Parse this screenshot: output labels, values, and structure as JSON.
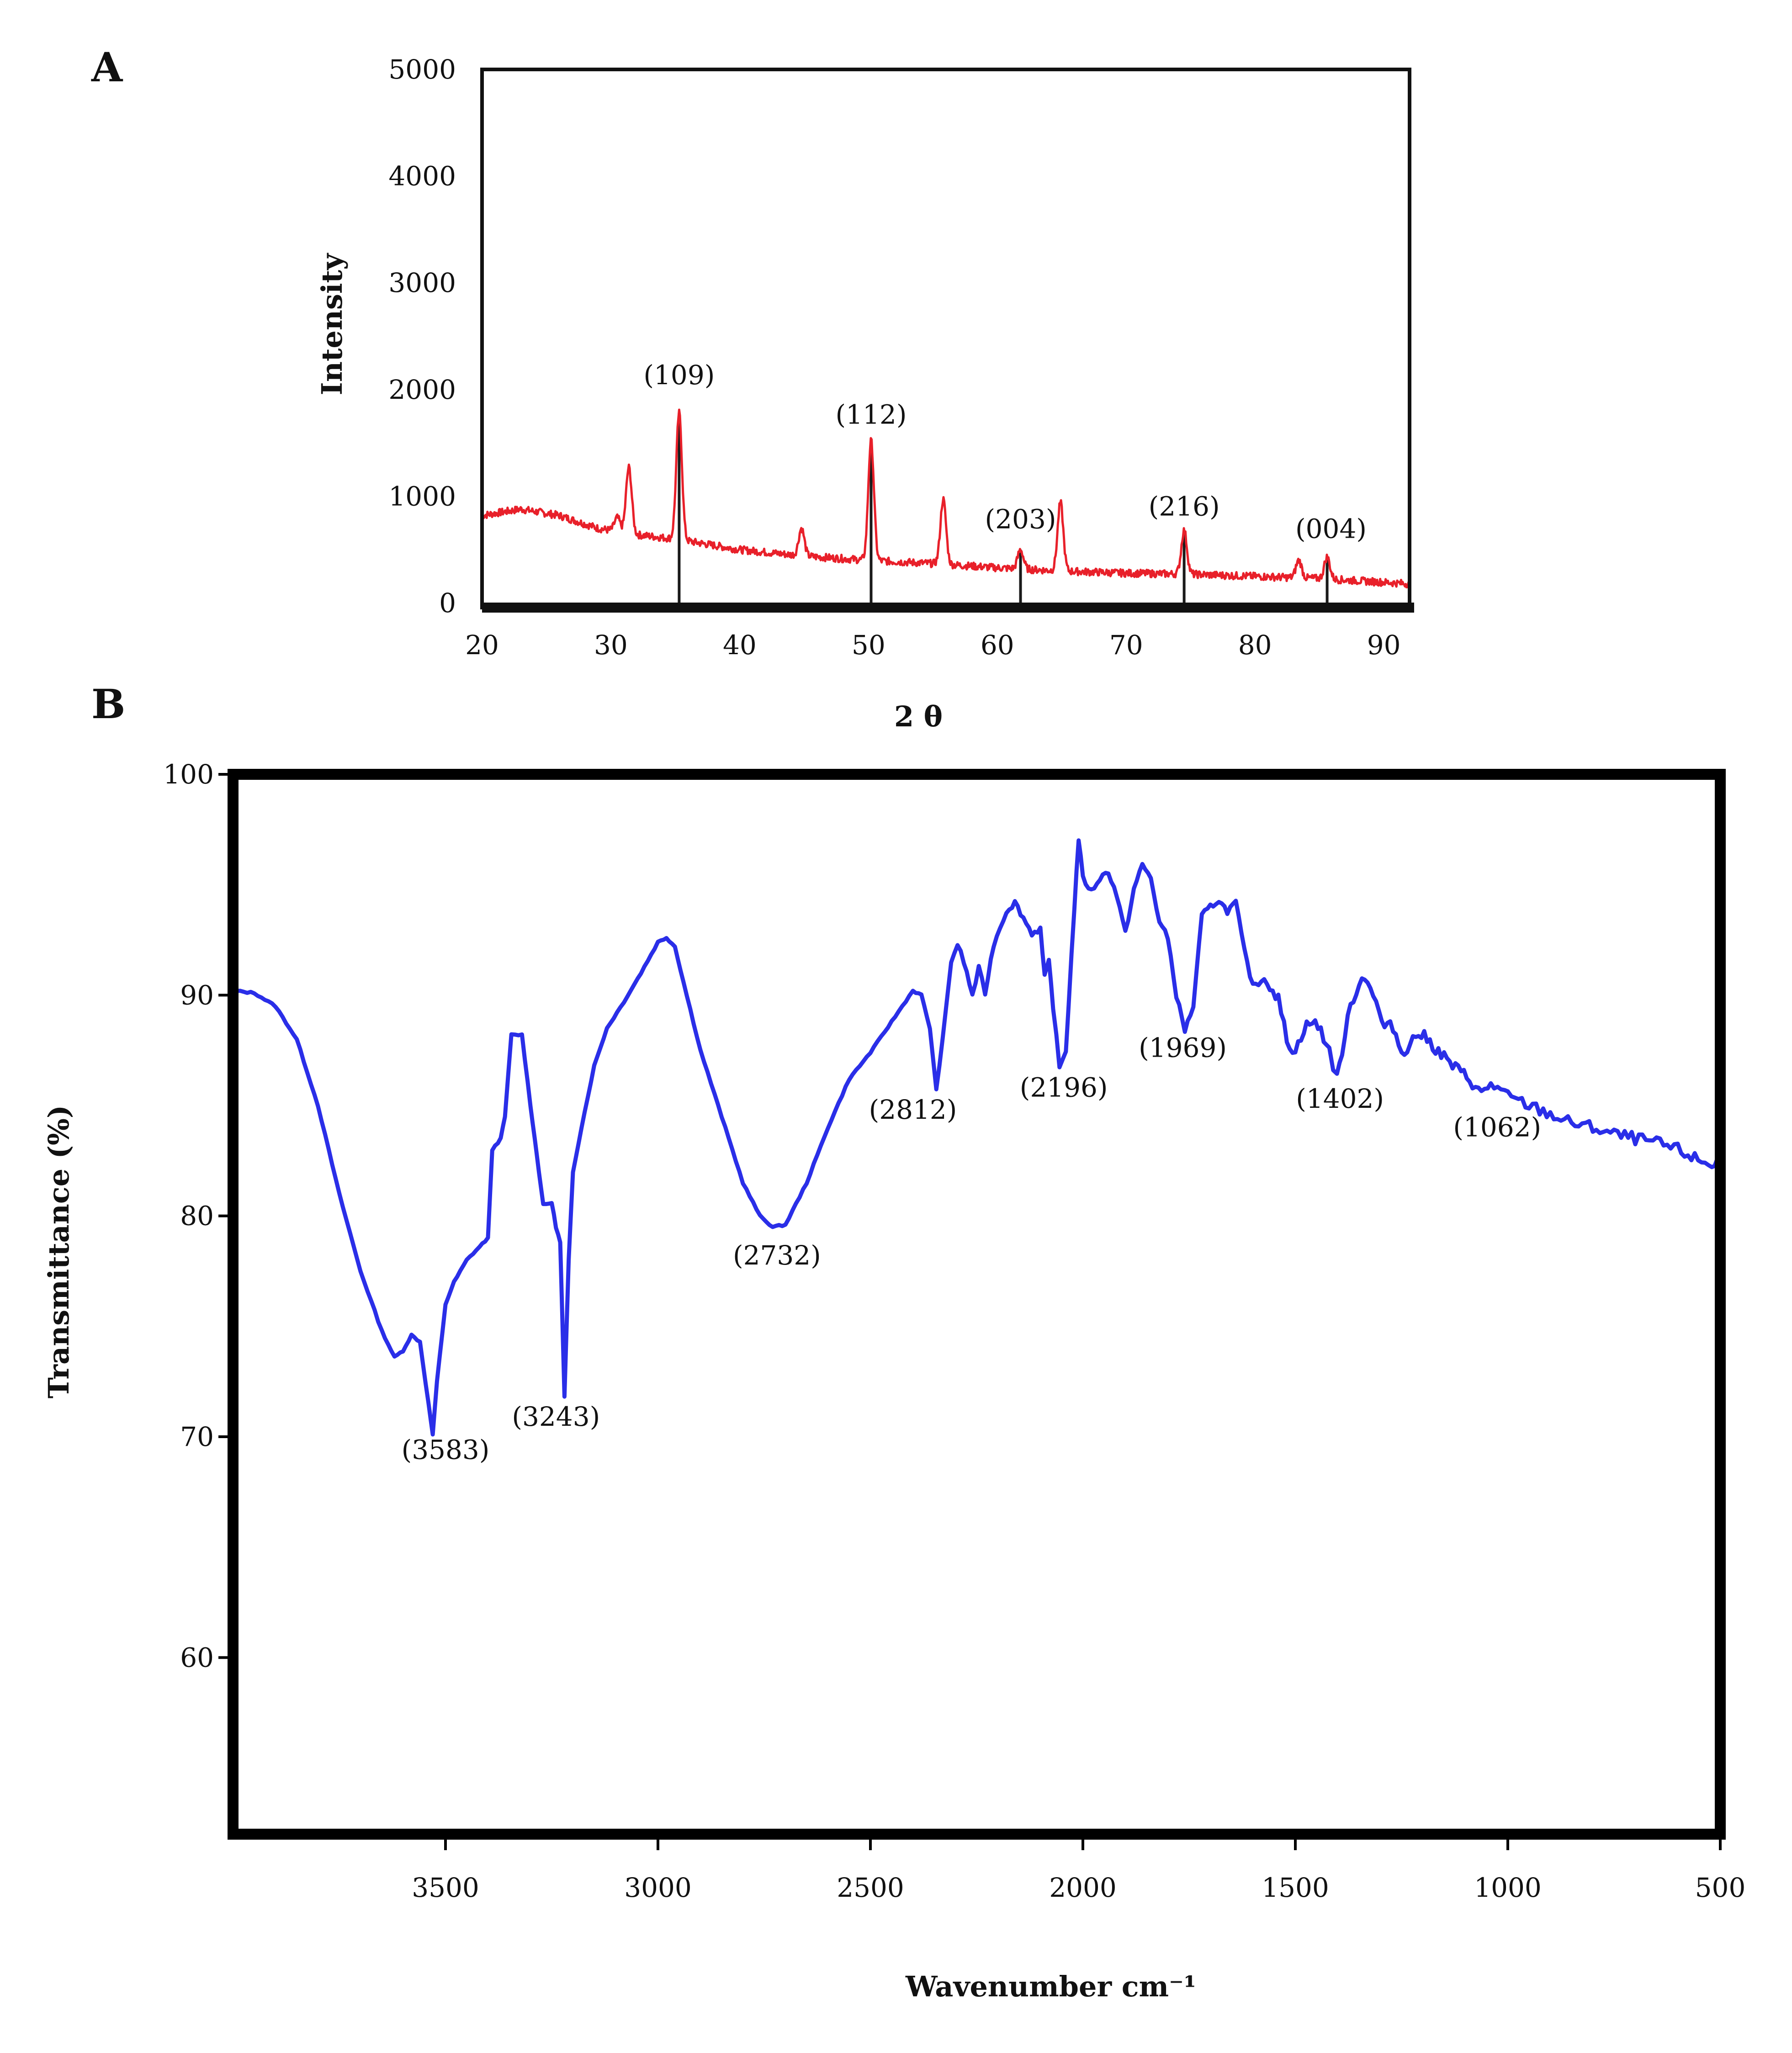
{
  "chart_data": [
    {
      "type": "line",
      "panel_label": "A",
      "xlabel": "2 θ",
      "ylabel": "Intensity",
      "xlim": [
        20,
        92
      ],
      "ylim": [
        0,
        5000
      ],
      "x_ticks": [
        {
          "label": "20",
          "value": 20
        },
        {
          "label": "30",
          "value": 30
        },
        {
          "label": "40",
          "value": 40
        },
        {
          "label": "50",
          "value": 50
        },
        {
          "label": "60",
          "value": 60
        },
        {
          "label": "70",
          "value": 70
        },
        {
          "label": "80",
          "value": 80
        },
        {
          "label": "90",
          "value": 90
        }
      ],
      "y_ticks": [
        {
          "label": "0",
          "value": 0
        },
        {
          "label": "1000",
          "value": 1000
        },
        {
          "label": "2000",
          "value": 2000
        },
        {
          "label": "3000",
          "value": 3000
        },
        {
          "label": "4000",
          "value": 4000
        },
        {
          "label": "5000",
          "value": 5000
        }
      ],
      "grid": false,
      "series": [
        {
          "color": "#e8202a",
          "background": [
            [
              20,
              820
            ],
            [
              23,
              880
            ],
            [
              26,
              820
            ],
            [
              29,
              700
            ],
            [
              32,
              640
            ],
            [
              35,
              600
            ],
            [
              40,
              500
            ],
            [
              45,
              440
            ],
            [
              50,
              400
            ],
            [
              55,
              370
            ],
            [
              60,
              330
            ],
            [
              65,
              300
            ],
            [
              70,
              280
            ],
            [
              75,
              270
            ],
            [
              80,
              250
            ],
            [
              85,
              230
            ],
            [
              92,
              180
            ]
          ],
          "peaks": [
            {
              "x": 30.5,
              "y": 800
            },
            {
              "x": 31.4,
              "y": 1270
            },
            {
              "x": 35.3,
              "y": 1780
            },
            {
              "x": 44.8,
              "y": 700
            },
            {
              "x": 50.2,
              "y": 1520
            },
            {
              "x": 55.8,
              "y": 970
            },
            {
              "x": 61.8,
              "y": 500
            },
            {
              "x": 64.9,
              "y": 940
            },
            {
              "x": 74.5,
              "y": 680
            },
            {
              "x": 83.4,
              "y": 400
            },
            {
              "x": 85.6,
              "y": 430
            }
          ]
        }
      ],
      "reference_lines": [
        {
          "x": 35.3,
          "y": 1780
        },
        {
          "x": 50.2,
          "y": 1520
        },
        {
          "x": 61.8,
          "y": 500
        },
        {
          "x": 74.5,
          "y": 680
        },
        {
          "x": 85.6,
          "y": 430
        }
      ],
      "reference_line_color": "#1a1a1a",
      "annotations": [
        {
          "text": "(109)",
          "x": 35.3,
          "y": 2050
        },
        {
          "text": "(112)",
          "x": 50.2,
          "y": 1680
        },
        {
          "text": "(203)",
          "x": 61.8,
          "y": 700
        },
        {
          "text": "(216)",
          "x": 74.5,
          "y": 820
        },
        {
          "text": "(004)",
          "x": 85.9,
          "y": 610
        }
      ]
    },
    {
      "type": "line",
      "panel_label": "B",
      "xlabel": "Wavenumber cm⁻¹",
      "ylabel": "Transmittance (%)",
      "xlim": [
        4000,
        500
      ],
      "ylim": [
        52,
        100
      ],
      "x_ticks": [
        {
          "label": "3500",
          "value": 3500
        },
        {
          "label": "3000",
          "value": 3000
        },
        {
          "label": "2500",
          "value": 2500
        },
        {
          "label": "2000",
          "value": 2000
        },
        {
          "label": "1500",
          "value": 1500
        },
        {
          "label": "1000",
          "value": 1000
        },
        {
          "label": "500",
          "value": 500
        }
      ],
      "y_ticks": [
        {
          "label": "100",
          "value": 100
        },
        {
          "label": "90",
          "value": 90
        },
        {
          "label": "80",
          "value": 80
        },
        {
          "label": "70",
          "value": 70
        },
        {
          "label": "60",
          "value": 60
        }
      ],
      "grid": false,
      "series": [
        {
          "color": "#2a2ee8",
          "points": [
            [
              4000,
              90.2
            ],
            [
              3950,
              90.1
            ],
            [
              3900,
              89.5
            ],
            [
              3850,
              88
            ],
            [
              3800,
              85
            ],
            [
              3750,
              81
            ],
            [
              3700,
              77.5
            ],
            [
              3650,
              74.8
            ],
            [
              3620,
              73.6
            ],
            [
              3600,
              73.9
            ],
            [
              3580,
              74.6
            ],
            [
              3560,
              74.3
            ],
            [
              3540,
              71.5
            ],
            [
              3530,
              70.1
            ],
            [
              3520,
              72.5
            ],
            [
              3500,
              76
            ],
            [
              3480,
              77
            ],
            [
              3450,
              78
            ],
            [
              3420,
              78.6
            ],
            [
              3400,
              79
            ],
            [
              3390,
              83
            ],
            [
              3370,
              83.5
            ],
            [
              3360,
              84.5
            ],
            [
              3345,
              88.2
            ],
            [
              3320,
              88.2
            ],
            [
              3300,
              85
            ],
            [
              3290,
              83.5
            ],
            [
              3280,
              82
            ],
            [
              3270,
              80.5
            ],
            [
              3250,
              80.6
            ],
            [
              3240,
              79.5
            ],
            [
              3230,
              78.8
            ],
            [
              3220,
              71.8
            ],
            [
              3210,
              78
            ],
            [
              3200,
              82
            ],
            [
              3180,
              84
            ],
            [
              3150,
              86.8
            ],
            [
              3120,
              88.5
            ],
            [
              3080,
              89.7
            ],
            [
              3040,
              91
            ],
            [
              3000,
              92.4
            ],
            [
              2980,
              92.6
            ],
            [
              2960,
              92.2
            ],
            [
              2940,
              90.6
            ],
            [
              2900,
              87.5
            ],
            [
              2850,
              84.5
            ],
            [
              2800,
              81.5
            ],
            [
              2760,
              80
            ],
            [
              2730,
              79.5
            ],
            [
              2700,
              79.6
            ],
            [
              2650,
              81.5
            ],
            [
              2600,
              84
            ],
            [
              2550,
              86.2
            ],
            [
              2500,
              87.4
            ],
            [
              2450,
              88.8
            ],
            [
              2400,
              90.2
            ],
            [
              2380,
              90
            ],
            [
              2360,
              88.5
            ],
            [
              2345,
              85.7
            ],
            [
              2330,
              88
            ],
            [
              2310,
              91.5
            ],
            [
              2295,
              92.3
            ],
            [
              2280,
              91.5
            ],
            [
              2260,
              90
            ],
            [
              2245,
              91.2
            ],
            [
              2230,
              90.1
            ],
            [
              2210,
              92.3
            ],
            [
              2180,
              93.8
            ],
            [
              2160,
              94.2
            ],
            [
              2140,
              93.5
            ],
            [
              2120,
              92.8
            ],
            [
              2100,
              93
            ],
            [
              2090,
              90.8
            ],
            [
              2080,
              91.5
            ],
            [
              2070,
              89.5
            ],
            [
              2055,
              86.7
            ],
            [
              2040,
              87.5
            ],
            [
              2020,
              94
            ],
            [
              2010,
              97.1
            ],
            [
              2000,
              95.3
            ],
            [
              1980,
              94.7
            ],
            [
              1960,
              95.3
            ],
            [
              1940,
              95.6
            ],
            [
              1920,
              94.5
            ],
            [
              1900,
              92.8
            ],
            [
              1880,
              94.8
            ],
            [
              1860,
              95.9
            ],
            [
              1840,
              95.3
            ],
            [
              1820,
              93.3
            ],
            [
              1800,
              92.6
            ],
            [
              1780,
              90
            ],
            [
              1760,
              88.4
            ],
            [
              1740,
              89.5
            ],
            [
              1720,
              93.6
            ],
            [
              1700,
              94
            ],
            [
              1680,
              94.3
            ],
            [
              1660,
              93.8
            ],
            [
              1640,
              94.2
            ],
            [
              1620,
              92
            ],
            [
              1600,
              90.4
            ],
            [
              1580,
              90.8
            ],
            [
              1560,
              90.5
            ],
            [
              1540,
              89.8
            ],
            [
              1520,
              88
            ],
            [
              1500,
              87.4
            ],
            [
              1480,
              88.5
            ],
            [
              1460,
              88.8
            ],
            [
              1440,
              88.4
            ],
            [
              1420,
              87.5
            ],
            [
              1402,
              86.2
            ],
            [
              1390,
              87.5
            ],
            [
              1370,
              89.5
            ],
            [
              1350,
              90.6
            ],
            [
              1330,
              90.8
            ],
            [
              1310,
              89.6
            ],
            [
              1290,
              88.5
            ],
            [
              1270,
              88.6
            ],
            [
              1250,
              87.4
            ],
            [
              1230,
              87.8
            ],
            [
              1210,
              88.3
            ],
            [
              1190,
              88
            ],
            [
              1170,
              87.6
            ],
            [
              1150,
              87.2
            ],
            [
              1130,
              86.8
            ],
            [
              1110,
              86.5
            ],
            [
              1090,
              86.2
            ],
            [
              1062,
              85.5
            ],
            [
              1040,
              86
            ],
            [
              1000,
              85.4
            ],
            [
              950,
              85
            ],
            [
              900,
              84.6
            ],
            [
              850,
              84.2
            ],
            [
              800,
              84
            ],
            [
              750,
              83.7
            ],
            [
              700,
              83.5
            ],
            [
              650,
              83.3
            ],
            [
              600,
              83
            ],
            [
              560,
              82.6
            ],
            [
              520,
              82.3
            ],
            [
              500,
              82.6
            ]
          ]
        }
      ],
      "annotations": [
        {
          "text": "(3583)",
          "x": 3500,
          "y": 69.0
        },
        {
          "text": "(3243)",
          "x": 3240,
          "y": 70.5
        },
        {
          "text": "(2732)",
          "x": 2720,
          "y": 77.8
        },
        {
          "text": "(2812)",
          "x": 2400,
          "y": 84.4
        },
        {
          "text": "(2196)",
          "x": 2045,
          "y": 85.4
        },
        {
          "text": "(1969)",
          "x": 1765,
          "y": 87.2
        },
        {
          "text": "(1402)",
          "x": 1395,
          "y": 84.9
        },
        {
          "text": "(1062)",
          "x": 1025,
          "y": 83.6
        }
      ]
    }
  ]
}
